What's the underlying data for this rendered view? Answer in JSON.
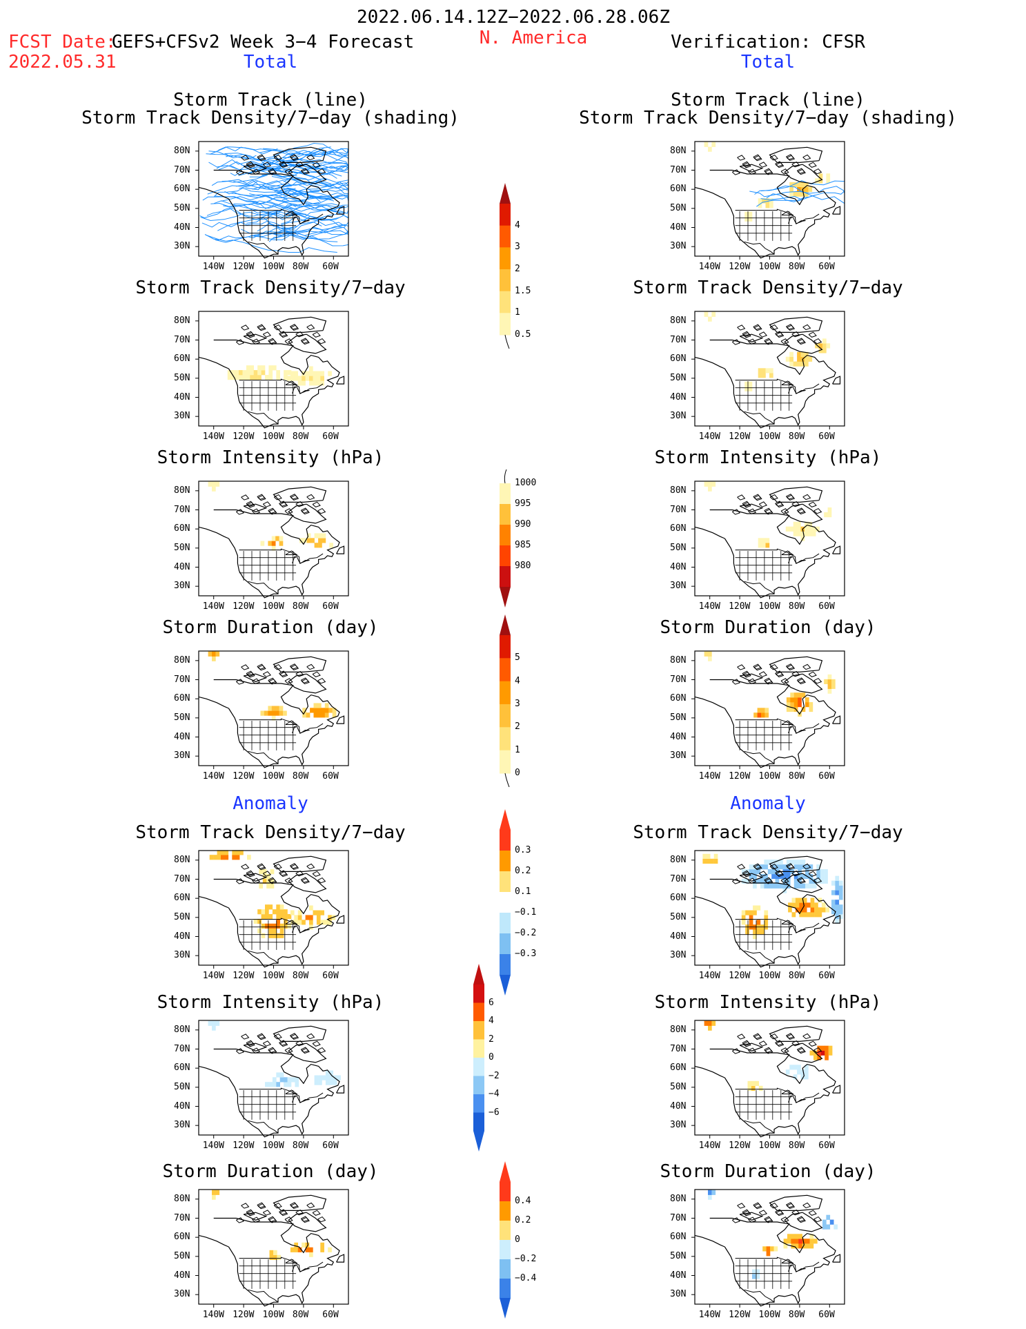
{
  "header": {
    "period": "2022.06.14.12Z−2022.06.28.06Z",
    "fcst_label": "FCST Date:",
    "fcst_date": "2022.05.31",
    "model": "GEFS+CFSv2 Week 3−4 Forecast",
    "region": "N. America",
    "verification": "Verification: CFSR"
  },
  "sections": {
    "total": "Total",
    "anomaly": "Anomaly"
  },
  "titles": {
    "track_line": "Storm Track (line)",
    "track_shading": "Storm Track Density/7−day (shading)",
    "density": "Storm Track Density/7−day",
    "intensity": "Storm Intensity (hPa)",
    "duration": "Storm Duration (day)"
  },
  "axes": {
    "lat": [
      "80N",
      "70N",
      "60N",
      "50N",
      "40N",
      "30N"
    ],
    "lon": [
      "140W",
      "120W",
      "100W",
      "80W",
      "60W"
    ]
  },
  "colorbars": {
    "density_total": [
      "0.5",
      "1",
      "1.5",
      "2",
      "3",
      "4"
    ],
    "intensity_total": [
      "1000",
      "995",
      "990",
      "985",
      "980"
    ],
    "duration_total": [
      "0",
      "1",
      "2",
      "3",
      "4",
      "5"
    ],
    "density_anom": [
      "0.3",
      "0.2",
      "0.1",
      "−0.1",
      "−0.2",
      "−0.3"
    ],
    "intensity_anom": [
      "6",
      "4",
      "2",
      "0",
      "−2",
      "−4",
      "−6"
    ],
    "duration_anom": [
      "0.4",
      "0.2",
      "0",
      "−0.2",
      "−0.4"
    ]
  },
  "colors": {
    "title_red": "#ff2a2a",
    "title_blue": "#1a35ff",
    "track_line": "#1e90ff"
  }
}
